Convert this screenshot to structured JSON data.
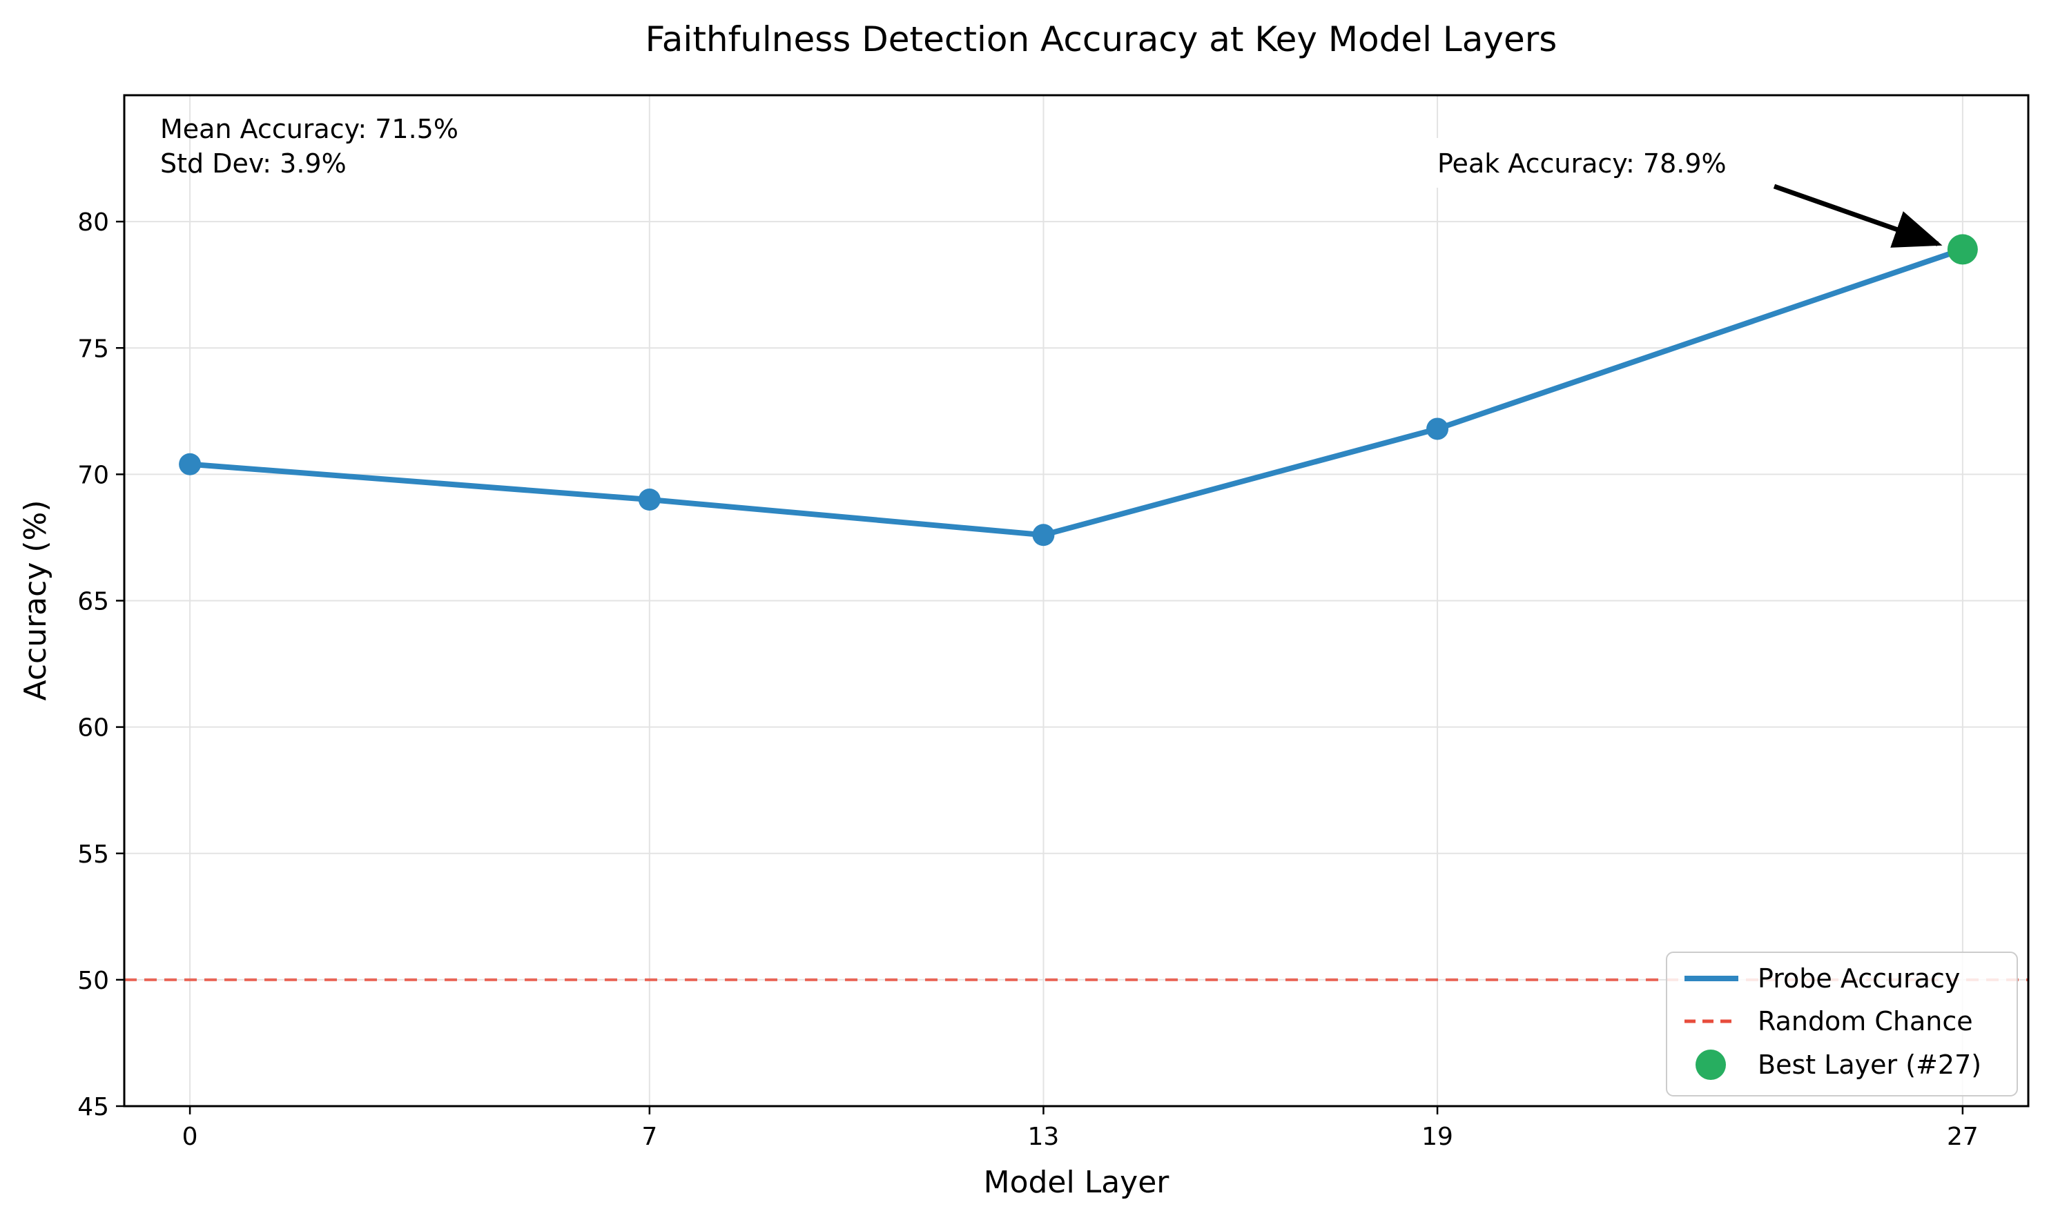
{
  "chart_data": {
    "type": "line",
    "title": "Faithfulness Detection Accuracy at Key Model Layers",
    "xlabel": "Model Layer",
    "ylabel": "Accuracy (%)",
    "x": [
      0,
      7,
      13,
      19,
      27
    ],
    "x_tick_labels": [
      "0",
      "7",
      "13",
      "19",
      "27"
    ],
    "xlim": [
      -1,
      28
    ],
    "ylim": [
      45,
      85
    ],
    "y_ticks": [
      45,
      50,
      55,
      60,
      65,
      70,
      75,
      80
    ],
    "grid": true,
    "series": [
      {
        "name": "Probe Accuracy",
        "values": [
          70.4,
          69.0,
          67.6,
          71.8,
          78.9
        ],
        "color": "#2e86c1"
      }
    ],
    "reference_line": {
      "name": "Random Chance",
      "y": 50,
      "color": "#e74c3c",
      "style": "dashed"
    },
    "highlight_point": {
      "name": "Best Layer (#27)",
      "x": 27,
      "y": 78.9,
      "color": "#27ae60"
    },
    "annotations": {
      "stats_line1": "Mean Accuracy: 71.5%",
      "stats_line2": "Std Dev: 3.9%",
      "peak_label": "Peak Accuracy: 78.9%"
    },
    "legend": {
      "placement": "bottom-right",
      "entries": [
        "Probe Accuracy",
        "Random Chance",
        "Best Layer (#27)"
      ]
    }
  }
}
